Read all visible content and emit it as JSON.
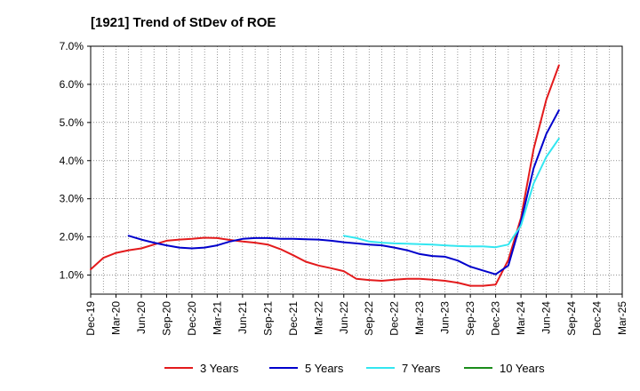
{
  "chart_data": {
    "type": "line",
    "title": "[1921]  Trend of StDev of ROE",
    "xlabel": "",
    "ylabel": "",
    "ylim": [
      0.5,
      7.0
    ],
    "y_ticks": [
      1.0,
      2.0,
      3.0,
      4.0,
      5.0,
      6.0,
      7.0
    ],
    "y_tick_labels": [
      "1.0%",
      "2.0%",
      "3.0%",
      "4.0%",
      "5.0%",
      "6.0%",
      "7.0%"
    ],
    "x_tick_labels": [
      "Dec-19",
      "Mar-20",
      "Jun-20",
      "Sep-20",
      "Dec-20",
      "Mar-21",
      "Jun-21",
      "Sep-21",
      "Dec-21",
      "Mar-22",
      "Jun-22",
      "Sep-22",
      "Dec-22",
      "Mar-23",
      "Jun-23",
      "Sep-23",
      "Dec-23",
      "Mar-24",
      "Jun-24",
      "Sep-24",
      "Dec-24",
      "Mar-25"
    ],
    "grid": true,
    "legend_position": "bottom",
    "series": [
      {
        "name": "3 Years",
        "color": "#e31a1c",
        "values": [
          [
            0,
            1.15
          ],
          [
            1,
            1.45
          ],
          [
            2,
            1.58
          ],
          [
            3,
            1.65
          ],
          [
            4,
            1.7
          ],
          [
            5,
            1.8
          ],
          [
            6,
            1.9
          ],
          [
            7,
            1.93
          ],
          [
            8,
            1.95
          ],
          [
            9,
            1.98
          ],
          [
            10,
            1.97
          ],
          [
            11,
            1.92
          ],
          [
            12,
            1.88
          ],
          [
            13,
            1.85
          ],
          [
            14,
            1.8
          ],
          [
            15,
            1.68
          ],
          [
            16,
            1.52
          ],
          [
            17,
            1.35
          ],
          [
            18,
            1.25
          ],
          [
            19,
            1.18
          ],
          [
            20,
            1.1
          ],
          [
            21,
            0.9
          ],
          [
            22,
            0.87
          ],
          [
            23,
            0.85
          ],
          [
            24,
            0.88
          ],
          [
            25,
            0.9
          ],
          [
            26,
            0.9
          ],
          [
            27,
            0.88
          ],
          [
            28,
            0.85
          ],
          [
            29,
            0.8
          ],
          [
            30,
            0.72
          ],
          [
            31,
            0.72
          ],
          [
            32,
            0.75
          ],
          [
            33,
            1.4
          ],
          [
            34,
            2.5
          ],
          [
            35,
            4.3
          ],
          [
            36,
            5.6
          ],
          [
            37,
            6.5
          ]
        ]
      },
      {
        "name": "5 Years",
        "color": "#0000cc",
        "values": [
          [
            3,
            2.03
          ],
          [
            4,
            1.93
          ],
          [
            5,
            1.85
          ],
          [
            6,
            1.78
          ],
          [
            7,
            1.72
          ],
          [
            8,
            1.7
          ],
          [
            9,
            1.72
          ],
          [
            10,
            1.78
          ],
          [
            11,
            1.88
          ],
          [
            12,
            1.95
          ],
          [
            13,
            1.97
          ],
          [
            14,
            1.97
          ],
          [
            15,
            1.95
          ],
          [
            16,
            1.95
          ],
          [
            17,
            1.94
          ],
          [
            18,
            1.93
          ],
          [
            19,
            1.9
          ],
          [
            20,
            1.86
          ],
          [
            21,
            1.83
          ],
          [
            22,
            1.8
          ],
          [
            23,
            1.78
          ],
          [
            24,
            1.72
          ],
          [
            25,
            1.65
          ],
          [
            26,
            1.55
          ],
          [
            27,
            1.5
          ],
          [
            28,
            1.48
          ],
          [
            29,
            1.38
          ],
          [
            30,
            1.22
          ],
          [
            31,
            1.12
          ],
          [
            32,
            1.02
          ],
          [
            33,
            1.25
          ],
          [
            34,
            2.4
          ],
          [
            35,
            3.8
          ],
          [
            36,
            4.7
          ],
          [
            37,
            5.32
          ]
        ]
      },
      {
        "name": "7 Years",
        "color": "#33e6f0",
        "values": [
          [
            20,
            2.03
          ],
          [
            21,
            1.97
          ],
          [
            22,
            1.88
          ],
          [
            23,
            1.85
          ],
          [
            24,
            1.83
          ],
          [
            25,
            1.82
          ],
          [
            26,
            1.81
          ],
          [
            27,
            1.8
          ],
          [
            28,
            1.78
          ],
          [
            29,
            1.76
          ],
          [
            30,
            1.75
          ],
          [
            31,
            1.75
          ],
          [
            32,
            1.73
          ],
          [
            33,
            1.8
          ],
          [
            34,
            2.3
          ],
          [
            35,
            3.4
          ],
          [
            36,
            4.1
          ],
          [
            37,
            4.58
          ]
        ]
      },
      {
        "name": "10 Years",
        "color": "#1a8c1a",
        "values": []
      }
    ]
  }
}
